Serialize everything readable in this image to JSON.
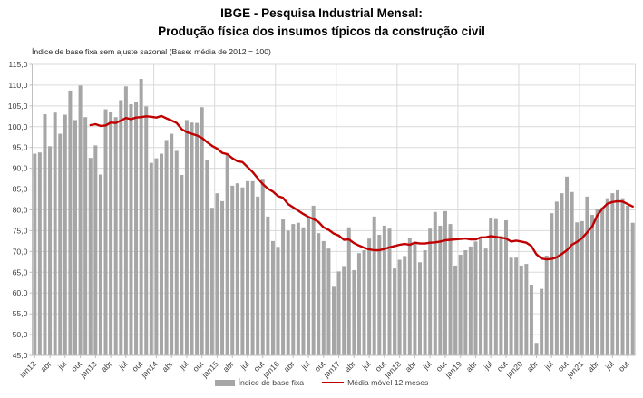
{
  "title": {
    "line1": "IBGE - Pesquisa Industrial Mensal:",
    "line2": "Produção física dos insumos típicos da construção civil"
  },
  "subtitle": "Índice de base fixa sem ajuste sazonal (Base: média de 2012 = 100)",
  "legend": {
    "bars_label": "Índice de base fixa",
    "line_label": "Média móvel 12 meses"
  },
  "colors": {
    "bar": "#a6a6a6",
    "line": "#c00000",
    "grid": "#d9d9d9",
    "axis": "#bfbfbf",
    "text": "#404040"
  },
  "chart_data": {
    "type": "bar",
    "title": "IBGE - Pesquisa Industrial Mensal: Produção física dos insumos típicos da construção civil",
    "subtitle": "Índice de base fixa sem ajuste sazonal (Base: média de 2012 = 100)",
    "ylim": [
      45,
      115
    ],
    "y_tick_step": 5,
    "y_tick_labels": [
      "115,0",
      "110,0",
      "105,0",
      "100,0",
      "95,0",
      "90,0",
      "85,0",
      "80,0",
      "75,0",
      "70,0",
      "65,0",
      "60,0",
      "55,0",
      "50,0",
      "45,0"
    ],
    "x_tick_every": 3,
    "x_tick_labels": [
      "jan12",
      "abr",
      "jul",
      "out",
      "jan13",
      "abr",
      "jul",
      "out",
      "jan14",
      "abr",
      "jul",
      "out",
      "jan15",
      "abr",
      "jul",
      "out",
      "jan16",
      "abr",
      "jul",
      "out",
      "jan17",
      "abr",
      "jul",
      "out",
      "jan18",
      "abr",
      "jul",
      "out",
      "jan19",
      "abr",
      "jul",
      "out",
      "jan20",
      "abr",
      "jul",
      "out",
      "jan21",
      "abr",
      "jul",
      "out"
    ],
    "grid": "horizontal every 5 + vertical at each january",
    "legend_position": "bottom",
    "categories": [
      "jan12",
      "fev12",
      "mar12",
      "abr12",
      "mai12",
      "jun12",
      "jul12",
      "ago12",
      "set12",
      "out12",
      "nov12",
      "dez12",
      "jan13",
      "fev13",
      "mar13",
      "abr13",
      "mai13",
      "jun13",
      "jul13",
      "ago13",
      "set13",
      "out13",
      "nov13",
      "dez13",
      "jan14",
      "fev14",
      "mar14",
      "abr14",
      "mai14",
      "jun14",
      "jul14",
      "ago14",
      "set14",
      "out14",
      "nov14",
      "dez14",
      "jan15",
      "fev15",
      "mar15",
      "abr15",
      "mai15",
      "jun15",
      "jul15",
      "ago15",
      "set15",
      "out15",
      "nov15",
      "dez15",
      "jan16",
      "fev16",
      "mar16",
      "abr16",
      "mai16",
      "jun16",
      "jul16",
      "ago16",
      "set16",
      "out16",
      "nov16",
      "dez16",
      "jan17",
      "fev17",
      "mar17",
      "abr17",
      "mai17",
      "jun17",
      "jul17",
      "ago17",
      "set17",
      "out17",
      "nov17",
      "dez17",
      "jan18",
      "fev18",
      "mar18",
      "abr18",
      "mai18",
      "jun18",
      "jul18",
      "ago18",
      "set18",
      "out18",
      "nov18",
      "dez18",
      "jan19",
      "fev19",
      "mar19",
      "abr19",
      "mai19",
      "jun19",
      "jul19",
      "ago19",
      "set19",
      "out19",
      "nov19",
      "dez19",
      "jan20",
      "fev20",
      "mar20",
      "abr20",
      "mai20",
      "jun20",
      "jul20",
      "ago20",
      "set20",
      "out20",
      "nov20",
      "dez20",
      "jan21",
      "fev21",
      "mar21",
      "abr21",
      "mai21",
      "jun21",
      "jul21",
      "ago21",
      "set21",
      "out21",
      "nov21"
    ],
    "series": [
      {
        "name": "Índice de base fixa",
        "type": "bar",
        "values": [
          93.5,
          93.8,
          103.0,
          95.3,
          103.4,
          98.3,
          102.9,
          108.7,
          101.6,
          109.9,
          102.3,
          92.5,
          95.5,
          88.5,
          104.2,
          103.6,
          102.3,
          106.4,
          109.7,
          105.4,
          105.9,
          111.5,
          104.9,
          91.3,
          92.4,
          93.5,
          96.8,
          98.3,
          94.2,
          88.4,
          101.6,
          101.0,
          100.9,
          104.7,
          92.0,
          80.5,
          84.0,
          82.1,
          93.5,
          85.8,
          86.4,
          85.4,
          86.9,
          86.9,
          83.2,
          87.5,
          78.4,
          72.5,
          71.1,
          77.7,
          75.0,
          76.6,
          76.9,
          75.8,
          78.0,
          81.0,
          74.4,
          72.5,
          70.7,
          61.5,
          65.2,
          66.5,
          75.8,
          65.5,
          69.6,
          70.3,
          73.1,
          78.4,
          74.0,
          76.2,
          75.5,
          65.9,
          68.0,
          68.9,
          73.3,
          72.2,
          67.4,
          70.3,
          75.5,
          79.5,
          76.2,
          79.7,
          76.6,
          66.6,
          69.2,
          70.3,
          71.2,
          72.4,
          73.4,
          70.7,
          78.0,
          77.8,
          73.7,
          77.5,
          68.5,
          68.5,
          66.6,
          67.0,
          62.0,
          48.0,
          61.0,
          69.0,
          79.2,
          82.0,
          84.0,
          88.0,
          84.3,
          77.0,
          77.3,
          83.2,
          78.8,
          80.3,
          80.6,
          82.8,
          84.0,
          84.7,
          82.8,
          81.0,
          76.9
        ]
      },
      {
        "name": "Média móvel 12 meses",
        "type": "line",
        "start_index": 11,
        "values": [
          100.4,
          100.6,
          100.2,
          100.3,
          101.0,
          100.9,
          101.5,
          102.1,
          101.8,
          102.2,
          102.3,
          102.5,
          102.4,
          102.2,
          102.6,
          102.0,
          101.5,
          100.9,
          99.4,
          98.7,
          98.3,
          97.9,
          97.3,
          96.3,
          95.4,
          94.7,
          93.7,
          93.4,
          92.4,
          91.7,
          91.5,
          90.3,
          89.1,
          87.6,
          86.2,
          85.1,
          84.4,
          83.3,
          82.9,
          81.4,
          80.6,
          79.8,
          79.0,
          78.3,
          77.8,
          77.1,
          75.8,
          75.2,
          74.3,
          73.8,
          72.8,
          72.9,
          72.0,
          71.4,
          70.9,
          70.5,
          70.3,
          70.3,
          70.6,
          71.0,
          71.3,
          71.6,
          71.8,
          71.6,
          72.1,
          71.9,
          71.9,
          72.1,
          72.2,
          72.4,
          72.7,
          72.8,
          72.9,
          73.0,
          73.1,
          72.9,
          72.9,
          73.4,
          73.4,
          73.7,
          73.5,
          73.3,
          73.1,
          72.4,
          72.6,
          72.4,
          72.1,
          71.3,
          69.3,
          68.3,
          68.1,
          68.2,
          68.6,
          69.4,
          70.3,
          71.6,
          72.3,
          73.2,
          74.6,
          76.0,
          78.7,
          80.3,
          81.5,
          81.9,
          82.1,
          82.0,
          81.4,
          80.8
        ]
      }
    ]
  }
}
